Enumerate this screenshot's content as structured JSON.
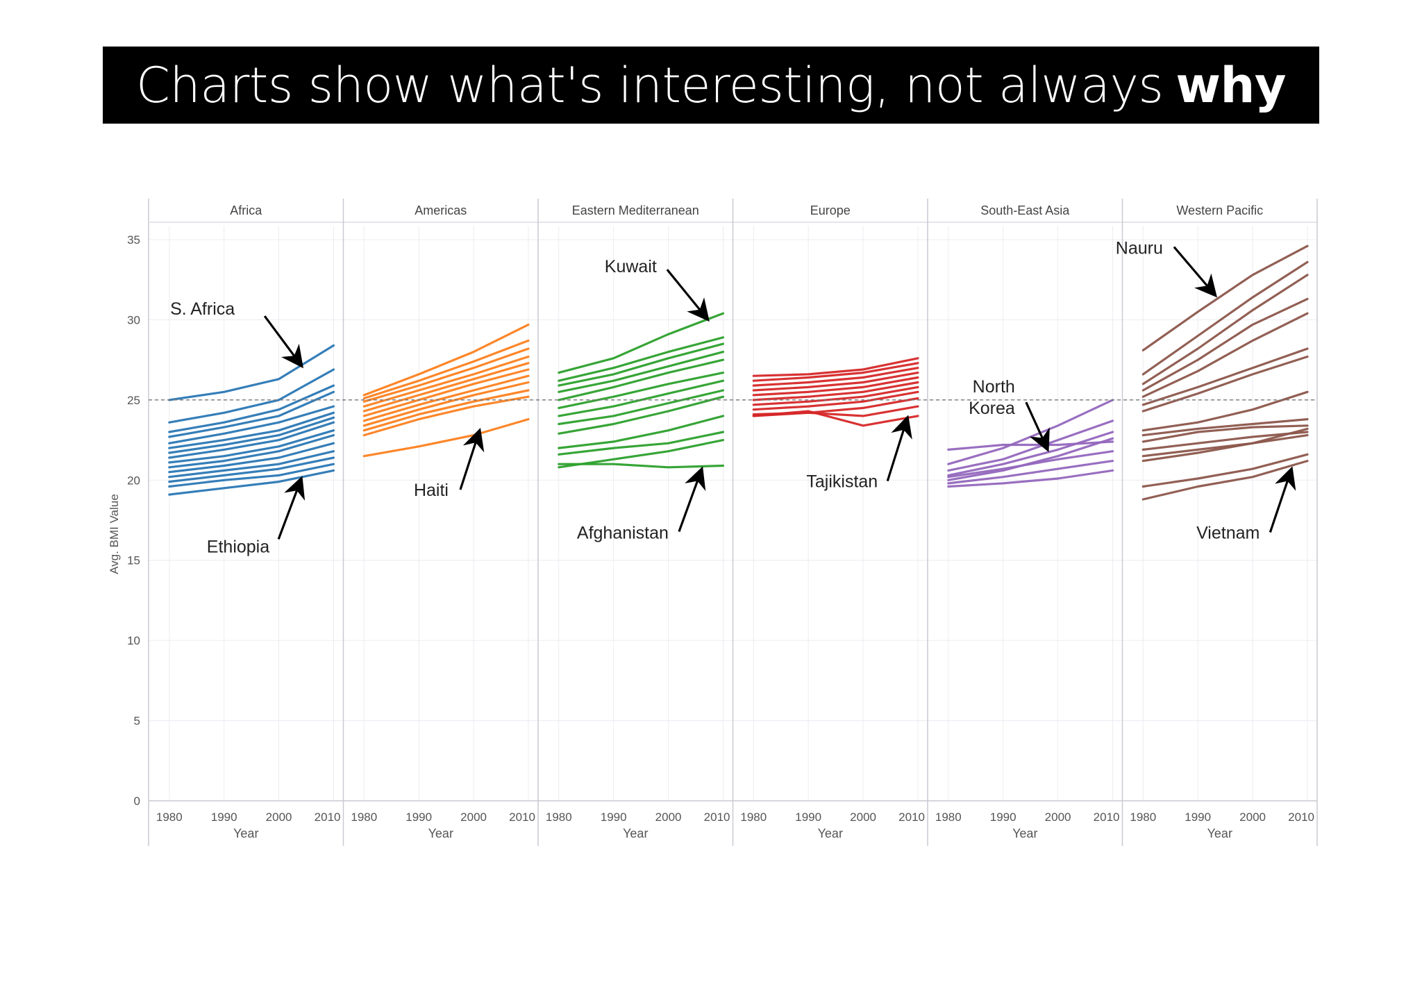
{
  "title": {
    "text": "Charts show what's interesting, not always",
    "emphasis": "why"
  },
  "colors": {
    "Africa": "#2a77b4",
    "Americas": "#fd7f1e",
    "Eastern Mediterranean": "#2ca02c",
    "Europe": "#d62728",
    "South-East Asia": "#9467bd",
    "Western Pacific": "#8c564b"
  },
  "chart_data": {
    "type": "line",
    "ylabel": "Avg. BMI Value",
    "xlabel": "Year",
    "ylim": [
      0,
      35
    ],
    "yticks": [
      0,
      5,
      10,
      15,
      20,
      25,
      30,
      35
    ],
    "xlim": [
      1978,
      2010
    ],
    "xticks": [
      1980,
      1990,
      2000,
      2010
    ],
    "reference_line": 25,
    "grid": true,
    "panels": [
      {
        "name": "Africa",
        "series": [
          {
            "name": "S. Africa",
            "values": [
              25.0,
              25.5,
              26.3,
              28.4
            ]
          },
          {
            "name": "Ethiopia",
            "values": [
              19.1,
              19.5,
              19.9,
              20.6
            ]
          },
          {
            "values": [
              23.6,
              24.2,
              25.0,
              26.9
            ]
          },
          {
            "values": [
              23.0,
              23.6,
              24.4,
              25.9
            ]
          },
          {
            "values": [
              22.7,
              23.3,
              24.0,
              25.5
            ]
          },
          {
            "values": [
              22.3,
              22.9,
              23.6,
              24.6
            ]
          },
          {
            "values": [
              22.0,
              22.5,
              23.1,
              24.2
            ]
          },
          {
            "values": [
              21.7,
              22.2,
              22.8,
              23.9
            ]
          },
          {
            "values": [
              21.4,
              21.9,
              22.5,
              23.6
            ]
          },
          {
            "values": [
              21.1,
              21.5,
              22.1,
              23.1
            ]
          },
          {
            "values": [
              20.8,
              21.2,
              21.8,
              22.8
            ]
          },
          {
            "values": [
              20.5,
              20.9,
              21.4,
              22.3
            ]
          },
          {
            "values": [
              20.2,
              20.6,
              21.0,
              21.8
            ]
          },
          {
            "values": [
              19.9,
              20.3,
              20.7,
              21.4
            ]
          },
          {
            "values": [
              19.6,
              20.0,
              20.3,
              21.0
            ]
          }
        ]
      },
      {
        "name": "Americas",
        "series": [
          {
            "name": "Haiti",
            "values": [
              21.5,
              22.1,
              22.8,
              23.8
            ]
          },
          {
            "values": [
              25.3,
              26.6,
              28.0,
              29.7
            ]
          },
          {
            "values": [
              25.1,
              26.2,
              27.4,
              28.7
            ]
          },
          {
            "values": [
              24.9,
              25.9,
              27.0,
              28.2
            ]
          },
          {
            "values": [
              24.6,
              25.6,
              26.6,
              27.7
            ]
          },
          {
            "values": [
              24.3,
              25.3,
              26.3,
              27.3
            ]
          },
          {
            "values": [
              24.0,
              25.0,
              26.0,
              26.9
            ]
          },
          {
            "values": [
              23.7,
              24.7,
              25.6,
              26.5
            ]
          },
          {
            "values": [
              23.4,
              24.4,
              25.3,
              26.1
            ]
          },
          {
            "values": [
              23.1,
              24.1,
              24.9,
              25.6
            ]
          },
          {
            "values": [
              22.8,
              23.8,
              24.6,
              25.2
            ]
          }
        ]
      },
      {
        "name": "Eastern Mediterranean",
        "series": [
          {
            "name": "Kuwait",
            "values": [
              26.7,
              27.6,
              29.1,
              30.4
            ]
          },
          {
            "name": "Afghanistan",
            "values": [
              21.0,
              21.0,
              20.8,
              20.9
            ]
          },
          {
            "values": [
              26.2,
              27.0,
              28.0,
              28.9
            ]
          },
          {
            "values": [
              25.9,
              26.6,
              27.6,
              28.5
            ]
          },
          {
            "values": [
              25.5,
              26.2,
              27.1,
              28.0
            ]
          },
          {
            "values": [
              25.0,
              25.8,
              26.7,
              27.5
            ]
          },
          {
            "values": [
              24.5,
              25.2,
              26.0,
              26.7
            ]
          },
          {
            "values": [
              24.0,
              24.6,
              25.4,
              26.2
            ]
          },
          {
            "values": [
              23.5,
              24.0,
              24.8,
              25.6
            ]
          },
          {
            "values": [
              22.9,
              23.5,
              24.3,
              25.2
            ]
          },
          {
            "values": [
              22.0,
              22.4,
              23.1,
              24.0
            ]
          },
          {
            "values": [
              21.6,
              22.0,
              22.3,
              23.0
            ]
          },
          {
            "values": [
              20.8,
              21.3,
              21.8,
              22.5
            ]
          }
        ]
      },
      {
        "name": "Europe",
        "series": [
          {
            "name": "Tajikistan",
            "values": [
              24.0,
              24.3,
              23.4,
              24.0
            ]
          },
          {
            "values": [
              26.5,
              26.6,
              26.9,
              27.6
            ]
          },
          {
            "values": [
              26.2,
              26.4,
              26.7,
              27.3
            ]
          },
          {
            "values": [
              25.9,
              26.1,
              26.4,
              27.0
            ]
          },
          {
            "values": [
              25.6,
              25.8,
              26.1,
              26.7
            ]
          },
          {
            "values": [
              25.3,
              25.5,
              25.8,
              26.4
            ]
          },
          {
            "values": [
              25.0,
              25.2,
              25.5,
              26.1
            ]
          },
          {
            "values": [
              24.7,
              24.9,
              25.2,
              25.8
            ]
          },
          {
            "values": [
              24.4,
              24.6,
              24.9,
              25.5
            ]
          },
          {
            "values": [
              24.1,
              24.2,
              24.5,
              25.1
            ]
          },
          {
            "values": [
              24.0,
              24.2,
              24.0,
              24.6
            ]
          }
        ]
      },
      {
        "name": "South-East Asia",
        "series": [
          {
            "name": "North Korea",
            "values": [
              21.9,
              22.2,
              22.2,
              22.4
            ]
          },
          {
            "values": [
              21.0,
              22.0,
              23.4,
              25.0
            ]
          },
          {
            "values": [
              20.6,
              21.3,
              22.5,
              23.7
            ]
          },
          {
            "values": [
              20.3,
              21.0,
              21.9,
              23.0
            ]
          },
          {
            "values": [
              20.0,
              20.6,
              21.5,
              22.6
            ]
          },
          {
            "values": [
              20.2,
              20.7,
              21.3,
              21.8
            ]
          },
          {
            "values": [
              19.8,
              20.2,
              20.7,
              21.2
            ]
          },
          {
            "values": [
              19.6,
              19.8,
              20.1,
              20.6
            ]
          }
        ]
      },
      {
        "name": "Western Pacific",
        "series": [
          {
            "name": "Nauru",
            "values": [
              28.1,
              30.5,
              32.8,
              34.6
            ]
          },
          {
            "name": "Vietnam",
            "values": [
              19.6,
              20.1,
              20.7,
              21.6
            ]
          },
          {
            "values": [
              26.6,
              29.0,
              31.4,
              33.6
            ]
          },
          {
            "values": [
              26.0,
              28.2,
              30.6,
              32.8
            ]
          },
          {
            "values": [
              25.6,
              27.5,
              29.7,
              31.3
            ]
          },
          {
            "values": [
              25.2,
              26.8,
              28.7,
              30.4
            ]
          },
          {
            "values": [
              24.7,
              25.8,
              27.0,
              28.2
            ]
          },
          {
            "values": [
              24.3,
              25.4,
              26.6,
              27.7
            ]
          },
          {
            "values": [
              23.1,
              23.6,
              24.4,
              25.5
            ]
          },
          {
            "values": [
              22.8,
              23.2,
              23.5,
              23.8
            ]
          },
          {
            "values": [
              22.4,
              23.0,
              23.3,
              23.4
            ]
          },
          {
            "values": [
              21.9,
              22.3,
              22.7,
              23.0
            ]
          },
          {
            "values": [
              21.5,
              21.9,
              22.3,
              22.8
            ]
          },
          {
            "values": [
              21.2,
              21.7,
              22.3,
              23.2
            ]
          },
          {
            "values": [
              18.8,
              19.6,
              20.2,
              21.2
            ]
          }
        ]
      }
    ]
  },
  "annotations": [
    {
      "text": "S. Africa",
      "panel": "Africa",
      "x": 2004,
      "y": 27.2
    },
    {
      "text": "Ethiopia",
      "panel": "Africa",
      "x": 2004,
      "y": 20.0
    },
    {
      "text": "Haiti",
      "panel": "Americas",
      "x": 2001,
      "y": 23.0
    },
    {
      "text": "Kuwait",
      "panel": "Eastern Mediterranean",
      "x": 2007,
      "y": 30.1
    },
    {
      "text": "Afghanistan",
      "panel": "Eastern Mediterranean",
      "x": 2006,
      "y": 20.6
    },
    {
      "text": "Tajikistan",
      "panel": "Europe",
      "x": 2008,
      "y": 23.8
    },
    {
      "text": "North Korea",
      "panel": "South-East Asia",
      "x": 1998,
      "y": 22.0
    },
    {
      "text": "Nauru",
      "panel": "Western Pacific",
      "x": 1993,
      "y": 31.6
    },
    {
      "text": "Vietnam",
      "panel": "Western Pacific",
      "x": 2007,
      "y": 20.6
    }
  ]
}
